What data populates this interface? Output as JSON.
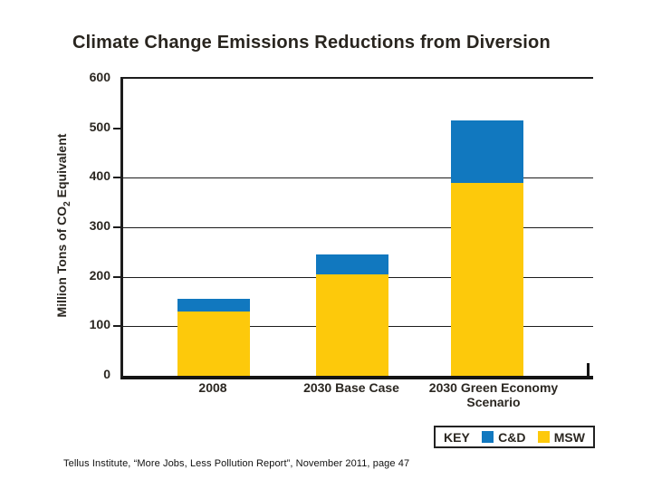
{
  "title": "Climate Change Emissions Reductions from Diversion",
  "caption": "Tellus Institute, “More Jobs, Less Pollution Report”, November 2011, page 47",
  "colors": {
    "msw_yellow": "#FDC90B",
    "cd_blue": "#1178BF",
    "axis_line": "#1c1c1c",
    "text": "#2b2721"
  },
  "chart_data": {
    "type": "bar",
    "stacked": true,
    "title": "Climate Change Emissions Reductions from Diversion",
    "categories": [
      "2008",
      "2030 Base Case",
      "2030 Green Economy Scenario"
    ],
    "series": [
      {
        "name": "MSW",
        "color": "#FDC90B",
        "values": [
          130,
          205,
          390
        ]
      },
      {
        "name": "C&D",
        "color": "#1178BF",
        "values": [
          26,
          40,
          125
        ]
      }
    ],
    "totals": [
      156,
      245,
      515
    ],
    "ylabel_pre": "Million Tons of CO",
    "ylabel_sub": "2",
    "ylabel_post": " Equivalent",
    "xlabel": "",
    "ylim": [
      0,
      600
    ],
    "yticks": [
      0,
      100,
      200,
      300,
      400,
      500,
      600
    ],
    "gridline_values": [
      100,
      200,
      300,
      400
    ],
    "grid": "horizontal-partial",
    "legend": {
      "label": "KEY",
      "position": "bottom-right",
      "entries": [
        "C&D",
        "MSW"
      ]
    }
  }
}
